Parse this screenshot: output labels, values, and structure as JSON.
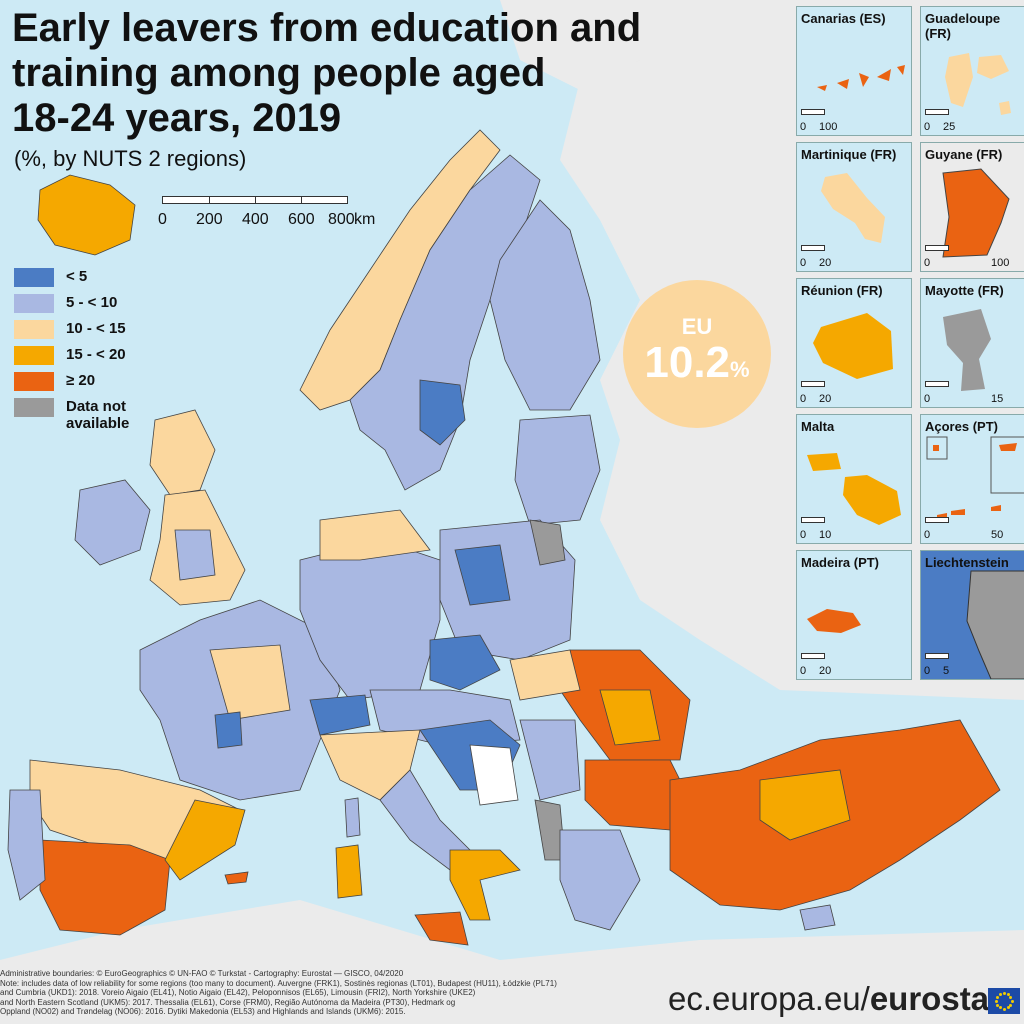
{
  "title": "Early leavers from education and\ntraining among people aged\n18-24 years, 2019",
  "subtitle": "(%, by NUTS 2 regions)",
  "scale": {
    "ticks": [
      "0",
      "200",
      "400",
      "600",
      "800"
    ],
    "unit": "km"
  },
  "legend": [
    {
      "label": "< 5",
      "color": "#4b7cc4"
    },
    {
      "label": "5 - < 10",
      "color": "#a9b8e2"
    },
    {
      "label": "10 - < 15",
      "color": "#fbd79e"
    },
    {
      "label": "15 - < 20",
      "color": "#f5a800"
    },
    {
      "label": "≥ 20",
      "color": "#ea6312"
    },
    {
      "label": "Data not\navailable",
      "color": "#9a9a9a"
    }
  ],
  "eu_average": {
    "label": "EU",
    "value": "10.2",
    "unit": "%"
  },
  "insets": [
    {
      "name": "Canarias (ES)",
      "scale": [
        "0",
        "100"
      ],
      "category": "≥ 20"
    },
    {
      "name": "Guadeloupe (FR)",
      "scale": [
        "0",
        "25"
      ],
      "category": "10 - < 15"
    },
    {
      "name": "Martinique (FR)",
      "scale": [
        "0",
        "20"
      ],
      "category": "10 - < 15"
    },
    {
      "name": "Guyane (FR)",
      "scale": [
        "0",
        "100"
      ],
      "category": "≥ 20"
    },
    {
      "name": "Réunion (FR)",
      "scale": [
        "0",
        "20"
      ],
      "category": "15 - < 20"
    },
    {
      "name": "Mayotte (FR)",
      "scale": [
        "0",
        "15"
      ],
      "category": "Data not available"
    },
    {
      "name": "Malta",
      "scale": [
        "0",
        "10"
      ],
      "category": "15 - < 20"
    },
    {
      "name": "Açores (PT)",
      "scale": [
        "0",
        "50"
      ],
      "category": "≥ 20"
    },
    {
      "name": "Madeira (PT)",
      "scale": [
        "0",
        "20"
      ],
      "category": "≥ 20"
    },
    {
      "name": "Liechtenstein",
      "scale": [
        "0",
        "5"
      ],
      "category": "< 5"
    }
  ],
  "colors": {
    "sea": "#cdeaf5",
    "non_eu_land": "#ebebeb",
    "boundary": "#444444"
  },
  "footnote": "Administrative boundaries: © EuroGeographics © UN-FAO © Turkstat - Cartography: Eurostat — GISCO, 04/2020\nNote: includes data of low reliability for some regions (too many to document). Auvergne (FRK1), Sostinės regionas (LT01), Budapest (HU11), Łódzkie (PL71)\nand Cumbria (UKD1): 2018. Voreio Aigaio (EL41), Notio Aigaio (EL42), Peloponnisos (EL65), Limousin (FRI2), North Yorkshire (UKE2)\nand North Eastern Scotland (UKM5): 2017. Thessalia (EL61), Corse (FRM0), Região Autónoma da Madeira (PT30), Hedmark og\nOppland (NO02) and Trøndelag (NO06): 2016. Dytiki Makedonia (EL53) and Highlands and Islands (UKM6): 2015.",
  "brand": {
    "domain": "ec.europa.eu/",
    "name": "eurostat"
  }
}
